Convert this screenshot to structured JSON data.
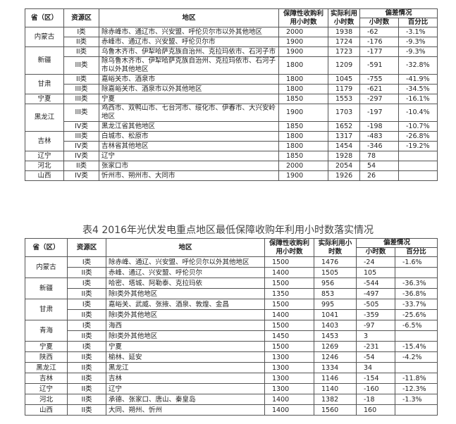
{
  "tables": [
    {
      "header": {
        "province": "省（区）",
        "class": "资源区",
        "region": "地区",
        "guaranteed": "保障性收购利用小时数",
        "actual": "实际利用小时数",
        "deviation": "偏差情况",
        "hours": "小时数",
        "percent": "百分比"
      },
      "groups": [
        {
          "province": "内蒙古",
          "rows": [
            [
              "I类",
              "除赤峰市、通辽市、兴安盟、呼伦贝尔市以外其他地区",
              2000,
              1938,
              -62,
              "-3.1%"
            ],
            [
              "II类",
              "赤峰市、通辽市、兴安盟、呼伦贝尔市",
              1900,
              1724,
              -176,
              "-9.3%"
            ]
          ]
        },
        {
          "province": "新疆",
          "rows": [
            [
              "II类",
              "乌鲁木齐市、伊犁哈萨克族自治州、克拉玛依市、石河子市",
              1900,
              1723,
              -177,
              "-9.3%"
            ],
            [
              "III类",
              "除乌鲁木齐市、伊犁哈萨克族自治州、克拉玛依市、石河子市以外其他地区",
              1800,
              1209,
              -591,
              "-32.8%"
            ]
          ]
        },
        {
          "province": "甘肃",
          "rows": [
            [
              "II类",
              "嘉峪关市、酒泉市",
              1800,
              1045,
              -755,
              "-41.9%"
            ],
            [
              "III类",
              "除嘉峪关市、酒泉市以外其他地区",
              1800,
              1179,
              -621,
              "-34.5%"
            ]
          ]
        },
        {
          "province": "宁夏",
          "rows": [
            [
              "III类",
              "宁夏",
              1850,
              1553,
              -297,
              "-16.1%"
            ]
          ]
        },
        {
          "province": "黑龙江",
          "rows": [
            [
              "III类",
              "鸡西市、双鸭山市、七台河市、绥化市、伊春市、大兴安岭地区",
              1900,
              1703,
              -197,
              "-10.4%"
            ],
            [
              "IV类",
              "黑龙江省其他地区",
              1850,
              1652,
              -198,
              "-10.7%"
            ]
          ]
        },
        {
          "province": "吉林",
          "rows": [
            [
              "III类",
              "白城市、松原市",
              1800,
              1317,
              -483,
              "-26.8%"
            ],
            [
              "IV类",
              "吉林省其他地区",
              1800,
              1454,
              -346,
              "-19.2%"
            ]
          ]
        },
        {
          "province": "辽宁",
          "rows": [
            [
              "IV类",
              "辽宁",
              1850,
              1928,
              78
            ]
          ]
        },
        {
          "province": "河北",
          "rows": [
            [
              "II类",
              "张家口市",
              2000,
              2054,
              54
            ]
          ]
        },
        {
          "province": "山西",
          "rows": [
            [
              "IV类",
              "忻州市、朔州市、大同市",
              1900,
              1926,
              26
            ]
          ]
        }
      ]
    },
    {
      "caption": "表4 2016年光伏发电重点地区最低保障收购年利用小时数落实情况",
      "header": {
        "province": "省（区）",
        "class": "资源区",
        "region": "地区",
        "guaranteed": "保障性收购利用小时数",
        "actual": "实际利用小时数",
        "deviation": "偏差情况",
        "hours": "小时数",
        "percent": "百分比"
      },
      "groups": [
        {
          "province": "内蒙古",
          "rows": [
            [
              "I类",
              "除赤峰、通辽、兴安盟、呼伦贝尔以外其他地区",
              1500,
              1476,
              -24,
              "-1.6%"
            ],
            [
              "II类",
              "赤峰、通辽、兴安盟、呼伦贝尔",
              1400,
              1505,
              105
            ]
          ]
        },
        {
          "province": "新疆",
          "rows": [
            [
              "I类",
              "哈密、塔城、阿勒泰、克拉玛依",
              1500,
              956,
              -544,
              "-36.3%"
            ],
            [
              "II类",
              "除I类外其他地区",
              1350,
              853,
              -497,
              "-36.8%"
            ]
          ]
        },
        {
          "province": "甘肃",
          "rows": [
            [
              "I类",
              "嘉峪关、武威、张掖、酒泉、敦煌、金昌",
              1500,
              995,
              -505,
              "-33.7%"
            ],
            [
              "II类",
              "除I类外其他地区",
              1400,
              1041,
              -359,
              "-25.6%"
            ]
          ]
        },
        {
          "province": "青海",
          "rows": [
            [
              "I类",
              "海西",
              1500,
              1403,
              -97,
              "-6.5%"
            ],
            [
              "II类",
              "除I类外其他地区",
              1450,
              1453,
              3
            ]
          ]
        },
        {
          "province": "宁夏",
          "rows": [
            [
              "I类",
              "宁夏",
              1500,
              1269,
              -231,
              "-15.4%"
            ]
          ]
        },
        {
          "province": "陕西",
          "rows": [
            [
              "II类",
              "榆林、延安",
              1300,
              1246,
              -54,
              "-4.2%"
            ]
          ]
        },
        {
          "province": "黑龙江",
          "rows": [
            [
              "II类",
              "黑龙江",
              1300,
              1334,
              34
            ]
          ]
        },
        {
          "province": "吉林",
          "rows": [
            [
              "II类",
              "吉林",
              1300,
              1146,
              -154,
              "-11.8%"
            ]
          ]
        },
        {
          "province": "辽宁",
          "rows": [
            [
              "II类",
              "辽宁",
              1300,
              1140,
              -160,
              "-12.3%"
            ]
          ]
        },
        {
          "province": "河北",
          "rows": [
            [
              "II类",
              "承德、张家口、唐山、秦皇岛",
              1400,
              1382,
              -18,
              "-1.3%"
            ]
          ]
        },
        {
          "province": "山西",
          "rows": [
            [
              "II类",
              "大同、朔州、忻州",
              1400,
              1560,
              160
            ]
          ]
        }
      ]
    }
  ]
}
